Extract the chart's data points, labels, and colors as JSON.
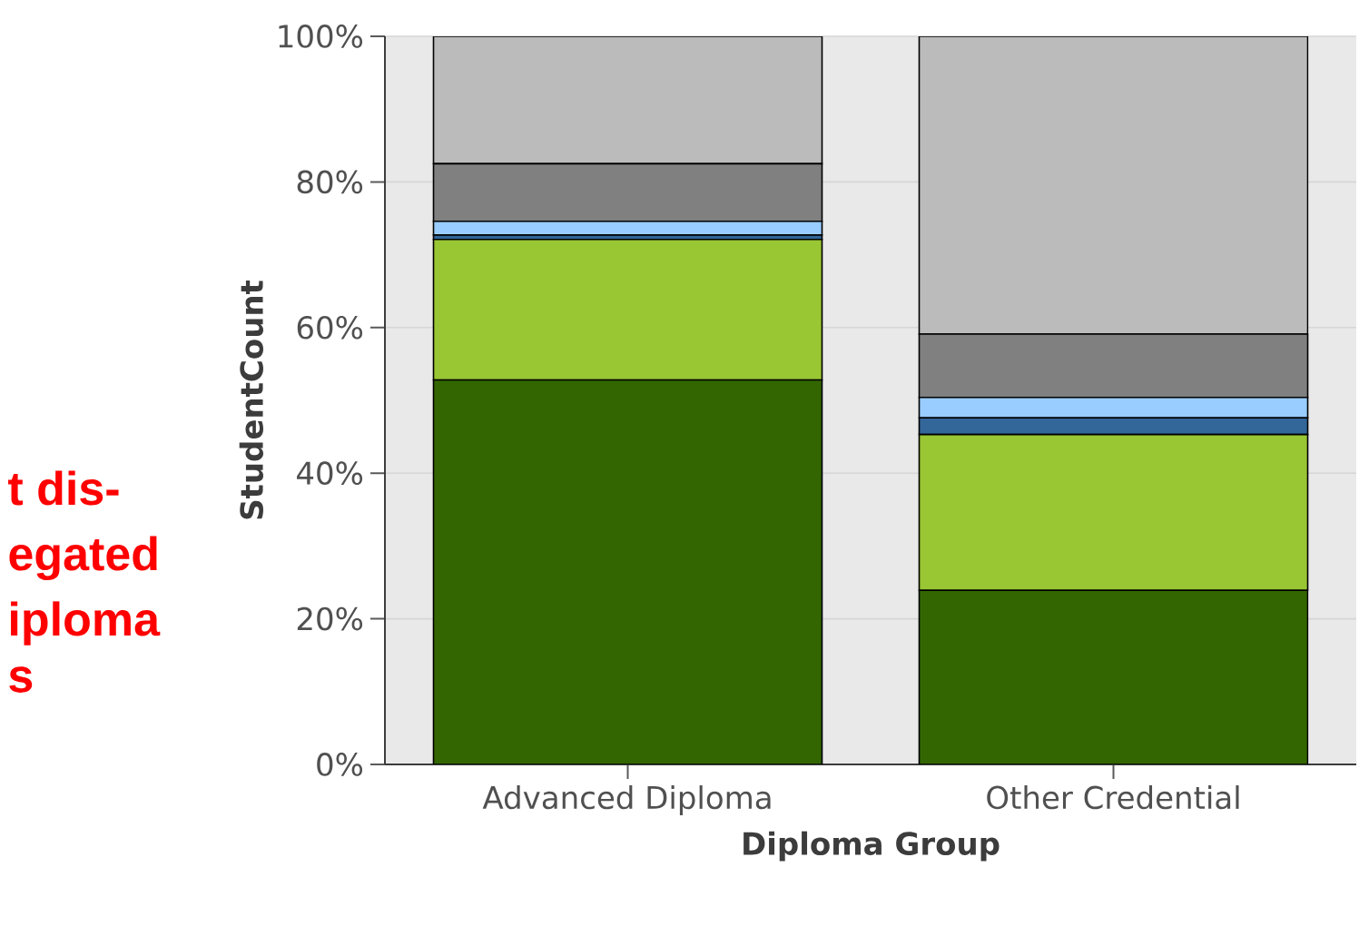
{
  "chart_data": {
    "type": "bar",
    "stacked": true,
    "xlabel": "Diploma Group",
    "ylabel": "StudentCount",
    "categories": [
      "Advanced Diploma",
      "Other Credential"
    ],
    "series": [
      {
        "color": "#336600",
        "values": [
          52.8,
          23.9
        ]
      },
      {
        "color": "#99c633",
        "values": [
          19.3,
          21.4
        ]
      },
      {
        "color": "#336699",
        "values": [
          0.6,
          2.3
        ]
      },
      {
        "color": "#99ccff",
        "values": [
          1.9,
          2.8
        ]
      },
      {
        "color": "#808080",
        "values": [
          7.9,
          8.7
        ]
      },
      {
        "color": "#bbbbbb",
        "values": [
          17.5,
          40.9
        ]
      }
    ],
    "ylim": [
      0,
      100
    ],
    "yticks": [
      {
        "value": 0,
        "label": "0%"
      },
      {
        "value": 20,
        "label": "20%"
      },
      {
        "value": 40,
        "label": "40%"
      },
      {
        "value": 60,
        "label": "60%"
      },
      {
        "value": 80,
        "label": "80%"
      },
      {
        "value": 100,
        "label": "100%"
      }
    ],
    "grid": "y",
    "annotations": [
      "t dis-",
      "egated",
      "iploma",
      "s"
    ]
  }
}
